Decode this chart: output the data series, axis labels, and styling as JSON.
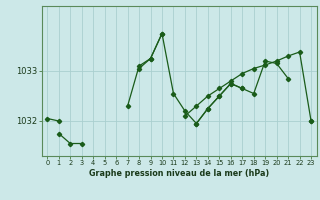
{
  "xlabel": "Graphe pression niveau de la mer (hPa)",
  "bg_color": "#cce8e8",
  "grid_color": "#aacfcf",
  "line_color": "#1a5c1a",
  "hours": [
    0,
    1,
    2,
    3,
    4,
    5,
    6,
    7,
    8,
    9,
    10,
    11,
    12,
    13,
    14,
    15,
    16,
    17,
    18,
    19,
    20,
    21,
    22,
    23
  ],
  "series1": [
    1032.05,
    1032.0,
    null,
    null,
    null,
    null,
    null,
    1032.3,
    1033.1,
    1033.25,
    1033.75,
    1032.55,
    1032.2,
    1031.95,
    1032.25,
    1032.5,
    1032.75,
    1032.65,
    1032.55,
    1033.2,
    1033.15,
    1032.85,
    null,
    1032.0
  ],
  "series2": [
    null,
    null,
    null,
    null,
    null,
    null,
    null,
    null,
    1033.05,
    1033.25,
    1033.75,
    null,
    null,
    1031.95,
    1032.25,
    1032.5,
    1032.75,
    1032.65,
    null,
    null,
    null,
    null,
    null,
    null
  ],
  "series3": [
    null,
    1031.75,
    1031.55,
    1031.55,
    null,
    null,
    null,
    null,
    null,
    null,
    null,
    null,
    1032.1,
    1032.3,
    1032.5,
    1032.65,
    1032.8,
    1032.95,
    1033.05,
    1033.12,
    1033.2,
    1033.3,
    1033.38,
    1032.0
  ],
  "ylim": [
    1031.3,
    1034.3
  ],
  "yticks": [
    1032,
    1033
  ],
  "xlim": [
    -0.5,
    23.5
  ],
  "spine_color": "#5a8a5a",
  "tick_label_color": "#1a3a1a",
  "xlabel_color": "#1a3a1a"
}
